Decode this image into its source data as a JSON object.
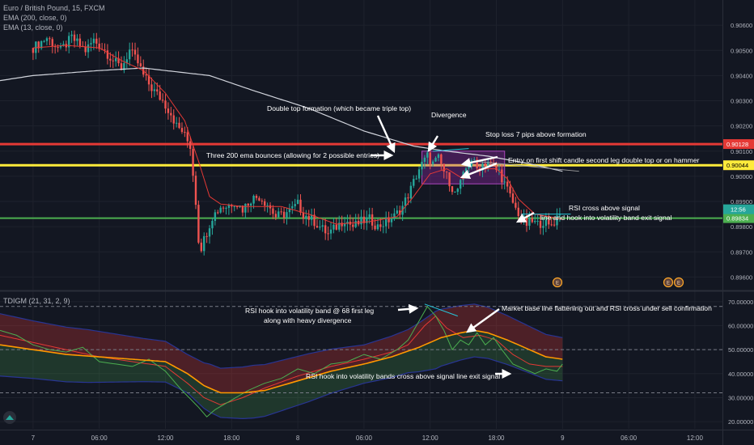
{
  "legend": {
    "symbol": "Euro / British Pound, 15, FXCM",
    "ema200": "EMA (200, close, 0)",
    "ema13": "EMA (13, close, 0)",
    "tdi": "TDIGM (21, 31, 2, 9)"
  },
  "colors": {
    "background": "#131722",
    "up": "#26a69a",
    "down": "#ef5350",
    "ema200": "#d1d4dc",
    "ema13": "#e53935",
    "stop_line": "#e53935",
    "entry_line": "#ffeb3b",
    "exit_line": "#4caf50",
    "box": "#9c27b0",
    "rsi": "#4caf50",
    "signal": "#e53935",
    "baseline": "#ff9800"
  },
  "chart_data": [
    {
      "type": "candlestick",
      "title": "Euro / British Pound, 15, FXCM",
      "ylim": [
        0.8955,
        0.907
      ],
      "y_ticks": [
        "0.90600",
        "0.90500",
        "0.90400",
        "0.90300",
        "0.90200",
        "0.90100",
        "0.90000",
        "0.89900",
        "0.89800",
        "0.89700",
        "0.89600"
      ],
      "y_tick_values": [
        0.906,
        0.905,
        0.904,
        0.903,
        0.902,
        0.901,
        0.9,
        0.899,
        0.898,
        0.897,
        0.896
      ],
      "x_ticks": [
        "7",
        "06:00",
        "12:00",
        "18:00",
        "8",
        "06:00",
        "12:00",
        "18:00",
        "9",
        "06:00",
        "12:00"
      ],
      "x_tick_bar_index": [
        0,
        24,
        48,
        72,
        96,
        120,
        144,
        168,
        192,
        216,
        240
      ],
      "xlim_bars": [
        -12,
        250
      ],
      "price_anchors": [
        [
          0,
          0.9051
        ],
        [
          5,
          0.9055
        ],
        [
          10,
          0.905
        ],
        [
          14,
          0.9055
        ],
        [
          19,
          0.905
        ],
        [
          22,
          0.9054
        ],
        [
          26,
          0.905
        ],
        [
          29,
          0.9046
        ],
        [
          32,
          0.9043
        ],
        [
          35,
          0.905
        ],
        [
          38,
          0.9045
        ],
        [
          40,
          0.904
        ],
        [
          43,
          0.9035
        ],
        [
          47,
          0.903
        ],
        [
          50,
          0.9025
        ],
        [
          52,
          0.902
        ],
        [
          54,
          0.9018
        ],
        [
          57,
          0.9012
        ],
        [
          59,
          0.899
        ],
        [
          60,
          0.8975
        ],
        [
          61,
          0.8972
        ],
        [
          63,
          0.8978
        ],
        [
          65,
          0.8984
        ],
        [
          68,
          0.8988
        ],
        [
          70,
          0.8988
        ],
        [
          73,
          0.899
        ],
        [
          76,
          0.8987
        ],
        [
          79,
          0.8991
        ],
        [
          82,
          0.8992
        ],
        [
          85,
          0.8989
        ],
        [
          88,
          0.8984
        ],
        [
          91,
          0.8985
        ],
        [
          94,
          0.8987
        ],
        [
          96,
          0.8989
        ],
        [
          98,
          0.8985
        ],
        [
          101,
          0.8983
        ],
        [
          104,
          0.898
        ],
        [
          107,
          0.8977
        ],
        [
          110,
          0.898
        ],
        [
          113,
          0.8983
        ],
        [
          116,
          0.898
        ],
        [
          119,
          0.8982
        ],
        [
          122,
          0.8983
        ],
        [
          125,
          0.898
        ],
        [
          128,
          0.8982
        ],
        [
          131,
          0.8984
        ],
        [
          134,
          0.8988
        ],
        [
          137,
          0.8995
        ],
        [
          140,
          0.9003
        ],
        [
          143,
          0.9008
        ],
        [
          145,
          0.9005
        ],
        [
          147,
          0.9007
        ],
        [
          149,
          0.9002
        ],
        [
          151,
          0.8998
        ],
        [
          153,
          0.8993
        ],
        [
          155,
          0.8997
        ],
        [
          157,
          0.9003
        ],
        [
          159,
          0.9007
        ],
        [
          161,
          0.9003
        ],
        [
          163,
          0.9005
        ],
        [
          165,
          0.9006
        ],
        [
          167,
          0.9003
        ],
        [
          169,
          0.9002
        ],
        [
          171,
          0.8997
        ],
        [
          173,
          0.8992
        ],
        [
          175,
          0.8987
        ],
        [
          177,
          0.8984
        ],
        [
          179,
          0.8981
        ],
        [
          181,
          0.8982
        ],
        [
          183,
          0.8981
        ],
        [
          185,
          0.8982
        ],
        [
          187,
          0.898
        ],
        [
          189,
          0.8982
        ],
        [
          191,
          0.8986
        ]
      ],
      "ema200_anchors": [
        [
          -12,
          0.9038
        ],
        [
          0,
          0.904
        ],
        [
          24,
          0.9042
        ],
        [
          40,
          0.9043
        ],
        [
          48,
          0.9042
        ],
        [
          64,
          0.904
        ],
        [
          80,
          0.9034
        ],
        [
          100,
          0.9027
        ],
        [
          120,
          0.9018
        ],
        [
          138,
          0.9012
        ],
        [
          150,
          0.901
        ],
        [
          165,
          0.9008
        ],
        [
          180,
          0.9005
        ],
        [
          192,
          0.9002
        ]
      ],
      "ema13_anchors": [
        [
          0,
          0.9051
        ],
        [
          12,
          0.9052
        ],
        [
          24,
          0.9051
        ],
        [
          32,
          0.9046
        ],
        [
          40,
          0.9042
        ],
        [
          48,
          0.9033
        ],
        [
          55,
          0.9022
        ],
        [
          60,
          0.9006
        ],
        [
          64,
          0.8992
        ],
        [
          68,
          0.8989
        ],
        [
          76,
          0.8988
        ],
        [
          90,
          0.8988
        ],
        [
          100,
          0.8985
        ],
        [
          110,
          0.8981
        ],
        [
          122,
          0.8982
        ],
        [
          132,
          0.8984
        ],
        [
          138,
          0.8992
        ],
        [
          144,
          0.9001
        ],
        [
          150,
          0.9003
        ],
        [
          156,
          0.8999
        ],
        [
          162,
          0.9003
        ],
        [
          168,
          0.9003
        ],
        [
          172,
          0.8999
        ],
        [
          176,
          0.8991
        ],
        [
          182,
          0.8985
        ],
        [
          192,
          0.8983
        ]
      ],
      "lines": [
        {
          "name": "stop",
          "value": 0.90128,
          "label": "0.90128"
        },
        {
          "name": "entry",
          "value": 0.90044,
          "label": "0.90044"
        },
        {
          "name": "exit",
          "value": 0.89834,
          "label": "0.89834"
        }
      ],
      "price_tag": {
        "value": 0.8985,
        "label": "12:56"
      },
      "box": {
        "x0": 141,
        "x1": 171,
        "y0": 0.901,
        "y1": 0.8997
      },
      "divergence_line": {
        "x0": 145,
        "y0": 0.901,
        "x1": 158,
        "y1": 0.9011
      },
      "triple_top_line": {
        "x0": 160,
        "y0": 0.9006,
        "x1": 198,
        "y1": 0.9002
      },
      "signal_line": {
        "x0": 177,
        "y0": 0.8985,
        "x1": 195,
        "y1": 0.8985
      },
      "event_icons": [
        {
          "x": 180,
          "label": "E"
        },
        {
          "x": 223,
          "label": "E"
        },
        {
          "x": 227,
          "label": "E"
        }
      ],
      "annotations": [
        {
          "text": "Double top formation (which became triple top)",
          "at": [
            100,
            0.9032
          ]
        },
        {
          "text": "Divergence",
          "at": [
            155,
            0.9028
          ]
        },
        {
          "text": "Stop loss  7 pips above formation",
          "at": [
            190,
            0.9018
          ]
        },
        {
          "text": "Three 200 ema bounces (allowing for 2 possible entries)",
          "at": [
            105,
            0.9009
          ]
        },
        {
          "text": "Entry on first shift candle second leg double top or on hammer",
          "at": [
            205,
            0.9007
          ]
        },
        {
          "text": "RSI cross above signal",
          "at": [
            200,
            0.8993
          ]
        },
        {
          "text": "line and hook into volatility band exit signal",
          "at": [
            200,
            0.8988
          ]
        }
      ]
    },
    {
      "type": "line",
      "title": "TDIGM (21, 31, 2, 9)",
      "ylim": [
        17,
        74
      ],
      "y_ticks": [
        "70.00000",
        "60.00000",
        "50.00000",
        "40.00000",
        "30.00000",
        "20.00000"
      ],
      "y_tick_values": [
        70,
        60,
        50,
        40,
        30,
        20
      ],
      "levels": [
        68,
        50,
        32
      ],
      "rsi_anchors": [
        [
          -12,
          58
        ],
        [
          -6,
          56
        ],
        [
          0,
          52
        ],
        [
          6,
          50
        ],
        [
          12,
          49
        ],
        [
          18,
          51
        ],
        [
          24,
          45
        ],
        [
          30,
          44
        ],
        [
          36,
          43
        ],
        [
          42,
          46
        ],
        [
          48,
          41
        ],
        [
          54,
          33
        ],
        [
          60,
          26
        ],
        [
          63,
          22
        ],
        [
          66,
          25
        ],
        [
          72,
          29
        ],
        [
          78,
          33
        ],
        [
          84,
          36
        ],
        [
          90,
          38
        ],
        [
          96,
          42
        ],
        [
          102,
          40
        ],
        [
          108,
          44
        ],
        [
          114,
          45
        ],
        [
          120,
          48
        ],
        [
          126,
          46
        ],
        [
          132,
          50
        ],
        [
          136,
          54
        ],
        [
          140,
          62
        ],
        [
          143,
          68
        ],
        [
          146,
          64
        ],
        [
          149,
          58
        ],
        [
          152,
          50
        ],
        [
          155,
          54
        ],
        [
          158,
          52
        ],
        [
          161,
          57
        ],
        [
          164,
          52
        ],
        [
          167,
          55
        ],
        [
          170,
          50
        ],
        [
          174,
          44
        ],
        [
          178,
          42
        ],
        [
          182,
          40
        ],
        [
          186,
          42
        ],
        [
          190,
          41
        ],
        [
          192,
          44
        ]
      ],
      "signal_anchors": [
        [
          -12,
          56
        ],
        [
          0,
          53
        ],
        [
          12,
          50
        ],
        [
          24,
          47
        ],
        [
          36,
          45
        ],
        [
          48,
          43
        ],
        [
          56,
          36
        ],
        [
          62,
          30
        ],
        [
          68,
          27
        ],
        [
          76,
          30
        ],
        [
          84,
          34
        ],
        [
          96,
          39
        ],
        [
          108,
          43
        ],
        [
          120,
          46
        ],
        [
          130,
          49
        ],
        [
          136,
          52
        ],
        [
          142,
          60
        ],
        [
          146,
          64
        ],
        [
          150,
          59
        ],
        [
          156,
          55
        ],
        [
          162,
          56
        ],
        [
          168,
          54
        ],
        [
          174,
          48
        ],
        [
          180,
          44
        ],
        [
          186,
          43
        ],
        [
          192,
          43
        ]
      ],
      "base_anchors": [
        [
          -12,
          52
        ],
        [
          0,
          50
        ],
        [
          12,
          48
        ],
        [
          24,
          47
        ],
        [
          36,
          46
        ],
        [
          48,
          45
        ],
        [
          56,
          40
        ],
        [
          62,
          35
        ],
        [
          68,
          32
        ],
        [
          76,
          32
        ],
        [
          84,
          33
        ],
        [
          96,
          37
        ],
        [
          108,
          41
        ],
        [
          120,
          44
        ],
        [
          130,
          47
        ],
        [
          140,
          51
        ],
        [
          148,
          55
        ],
        [
          155,
          57
        ],
        [
          160,
          58
        ],
        [
          165,
          57
        ],
        [
          172,
          54
        ],
        [
          180,
          50
        ],
        [
          186,
          47
        ],
        [
          192,
          46
        ]
      ],
      "band_width_anchors": [
        [
          -12,
          13
        ],
        [
          0,
          12
        ],
        [
          20,
          11
        ],
        [
          40,
          9
        ],
        [
          56,
          8
        ],
        [
          64,
          10
        ],
        [
          80,
          11
        ],
        [
          100,
          10
        ],
        [
          120,
          8
        ],
        [
          136,
          9
        ],
        [
          146,
          12
        ],
        [
          160,
          11
        ],
        [
          175,
          10
        ],
        [
          192,
          9
        ]
      ],
      "divergence_line": {
        "x0": 142,
        "y0": 69,
        "x1": 154,
        "y1": 64
      },
      "annotations": [
        {
          "text": "RSI hook into volatility band @ 68 first leg",
          "at": [
            105,
            68
          ]
        },
        {
          "text": "along with heavy divergence",
          "at": [
            105,
            63.5
          ]
        },
        {
          "text": "Market base line flattening out and RSI cross under sell confirmation",
          "at": [
            205,
            68
          ]
        },
        {
          "text": "RSI hook into volatility bands cross above signal line exit signal",
          "at": [
            165,
            40.5
          ]
        }
      ]
    }
  ]
}
